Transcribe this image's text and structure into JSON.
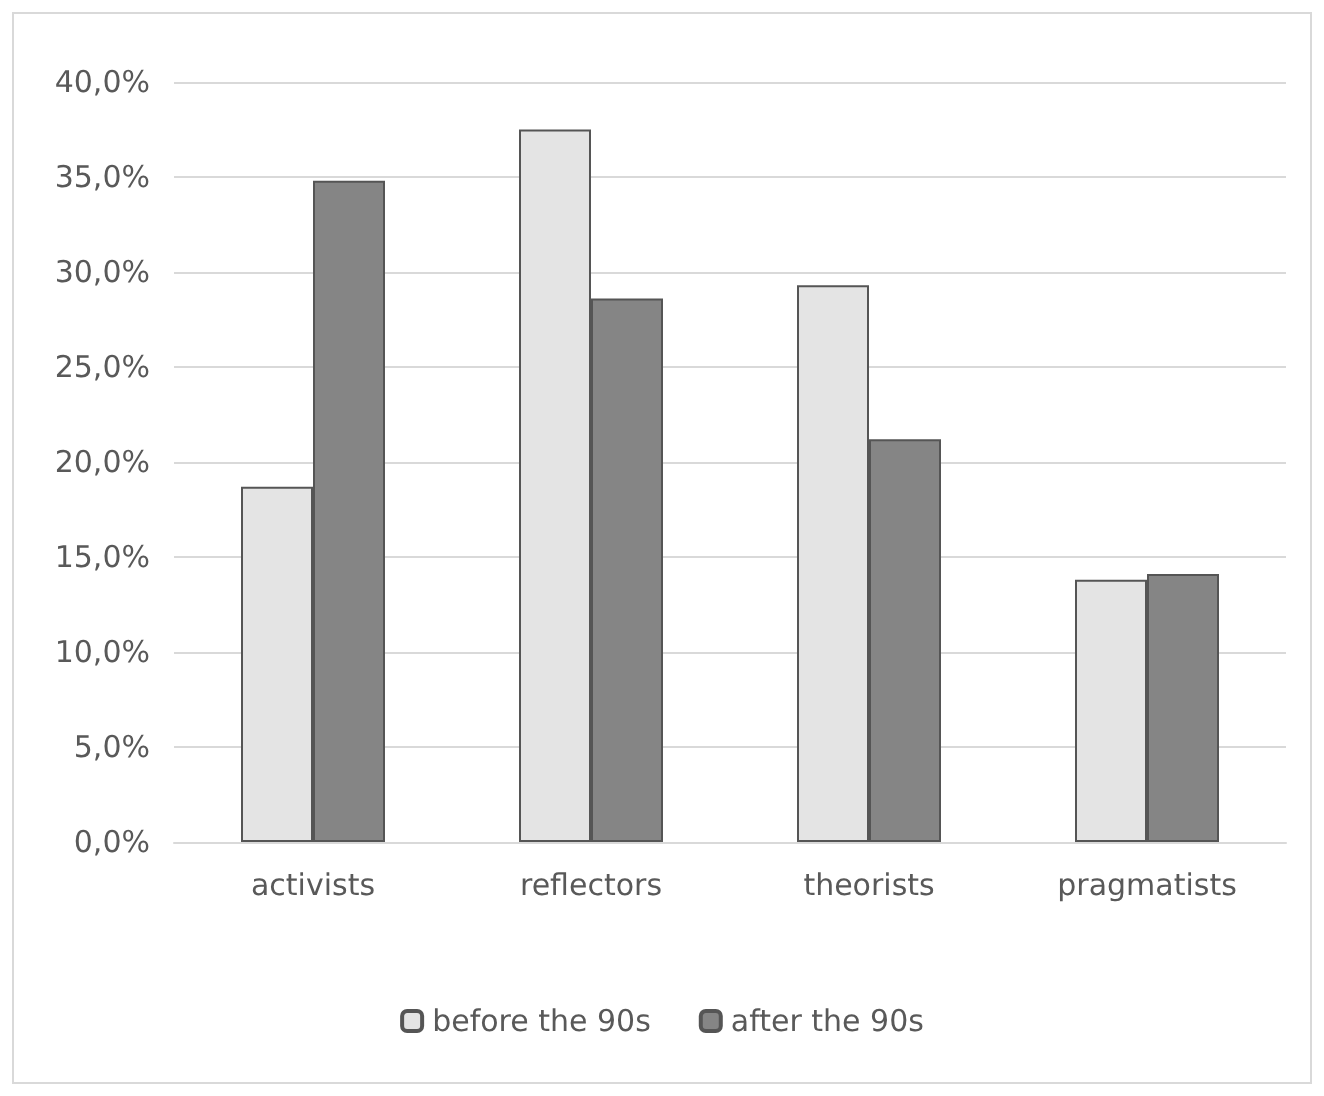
{
  "chart_data": {
    "type": "bar",
    "categories": [
      "activists",
      "reflectors",
      "theorists",
      "pragmatists"
    ],
    "series": [
      {
        "name": "before the 90s",
        "color": "#e4e4e4",
        "values": [
          18.7,
          37.5,
          29.3,
          13.8
        ]
      },
      {
        "name": "after the 90s",
        "color": "#858585",
        "values": [
          34.8,
          28.6,
          21.2,
          14.1
        ]
      }
    ],
    "ylim": [
      0,
      40
    ],
    "yticks": [
      {
        "value": 0,
        "label": "0,0%"
      },
      {
        "value": 5,
        "label": "5,0%"
      },
      {
        "value": 10,
        "label": "10,0%"
      },
      {
        "value": 15,
        "label": "15,0%"
      },
      {
        "value": 20,
        "label": "20,0%"
      },
      {
        "value": 25,
        "label": "25,0%"
      },
      {
        "value": 30,
        "label": "30,0%"
      },
      {
        "value": 35,
        "label": "35,0%"
      },
      {
        "value": 40,
        "label": "40,0%"
      }
    ],
    "grid": "y",
    "legend": "bottom"
  }
}
